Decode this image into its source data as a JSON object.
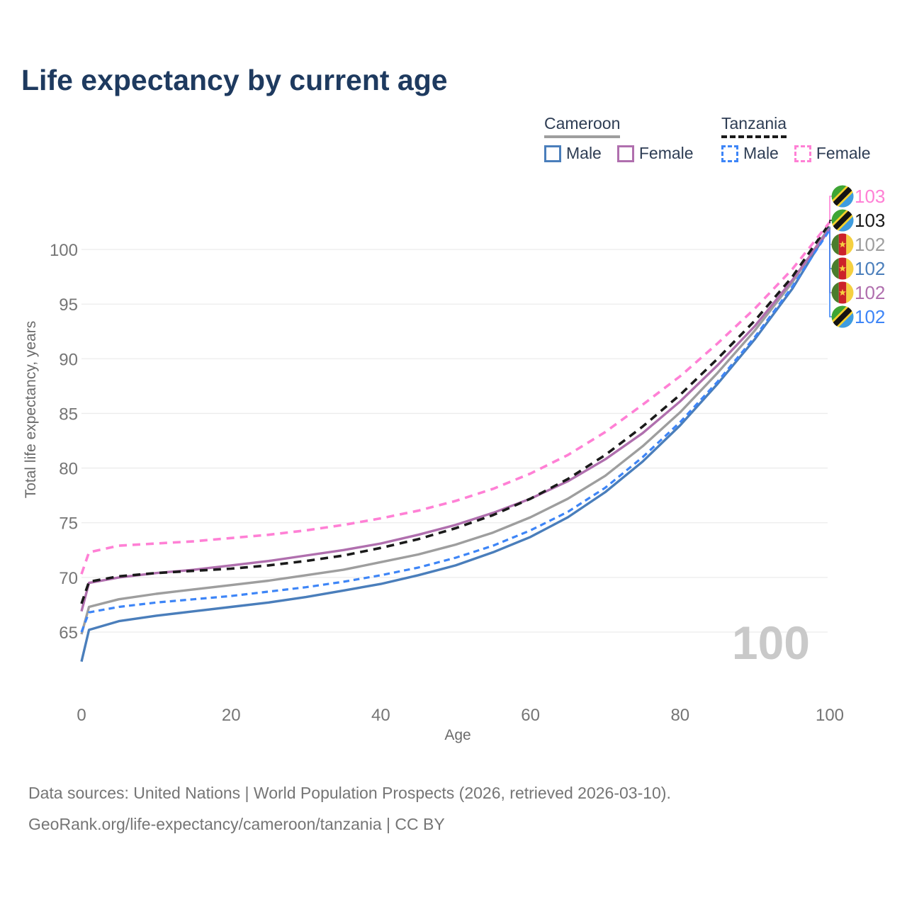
{
  "title": "Life expectancy by current age",
  "legend": {
    "cameroon": {
      "label": "Cameroon",
      "male": "Male",
      "female": "Female"
    },
    "tanzania": {
      "label": "Tanzania",
      "male": "Male",
      "female": "Female"
    }
  },
  "y_axis": {
    "title": "Total life expectancy, years",
    "ticks": [
      65,
      70,
      75,
      80,
      85,
      90,
      95,
      100
    ]
  },
  "x_axis": {
    "title": "Age",
    "ticks": [
      0,
      20,
      40,
      60,
      80,
      100
    ]
  },
  "watermark": "100",
  "footer": {
    "line1": "Data sources: United Nations | World Population Prospects (2026, retrieved 2026-03-10).",
    "line2": "GeoRank.org/life-expectancy/cameroon/tanzania | CC BY"
  },
  "colors": {
    "title": "#1e3a5f",
    "legend_text": "#2e3d54",
    "tick": "#757575",
    "axis_label": "#6b6b6b",
    "grid": "#ececec",
    "watermark": "#c9c9c9",
    "cameroon_male": "#4a7ebb",
    "cameroon_female": "#b06fae",
    "cameroon_both": "#9e9e9e",
    "tanzania_male": "#3d85f7",
    "tanzania_female": "#ff80d5",
    "tanzania_both": "#1a1a1a"
  },
  "flag_colors": {
    "tanzania": {
      "green": "#3FA535",
      "blue": "#3E9CE0",
      "yellow": "#F8D12B",
      "black": "#141414"
    },
    "cameroon": {
      "green": "#4a7d2c",
      "red": "#cc2229",
      "yellow": "#f5d040"
    }
  },
  "chart_data": {
    "type": "line",
    "title": "Life expectancy by current age",
    "xlabel": "Age",
    "ylabel": "Total life expectancy, years",
    "x_ticks": [
      0,
      20,
      40,
      60,
      80,
      100
    ],
    "y_ticks": [
      65,
      70,
      75,
      80,
      85,
      90,
      95,
      100
    ],
    "xlim": [
      0,
      100
    ],
    "ylim": [
      62,
      103
    ],
    "grid": "horizontal",
    "legend_position": "top-right",
    "ages": [
      0,
      1,
      5,
      10,
      15,
      20,
      25,
      30,
      35,
      40,
      45,
      50,
      55,
      60,
      65,
      70,
      75,
      80,
      85,
      90,
      95,
      100
    ],
    "series": [
      {
        "id": "tanzania-female",
        "name": "Tanzania Female",
        "country": "tanzania",
        "sex": "female",
        "line": "dashed",
        "color": "#ff80d5",
        "dash": "11 8",
        "width": 3.6,
        "row": 1,
        "end_label": "103",
        "values": [
          70.3,
          72.3,
          72.9,
          73.1,
          73.3,
          73.6,
          73.9,
          74.3,
          74.8,
          75.4,
          76.1,
          77.0,
          78.1,
          79.5,
          81.2,
          83.3,
          85.8,
          88.4,
          91.4,
          94.6,
          98.2,
          102.5
        ]
      },
      {
        "id": "tanzania-both",
        "name": "Tanzania Both sexes",
        "country": "tanzania",
        "sex": "both",
        "line": "dashed",
        "color": "#1a1a1a",
        "dash": "11 8",
        "width": 3.6,
        "row": 2,
        "end_label": "103",
        "values": [
          67.6,
          69.6,
          70.1,
          70.4,
          70.6,
          70.8,
          71.1,
          71.5,
          72.0,
          72.7,
          73.5,
          74.5,
          75.7,
          77.2,
          79.0,
          81.2,
          83.8,
          86.7,
          90.0,
          93.5,
          97.5,
          102.4
        ]
      },
      {
        "id": "cameroon-both",
        "name": "Cameroon Both sexes",
        "country": "cameroon",
        "sex": "both",
        "line": "solid",
        "color": "#9e9e9e",
        "dash": null,
        "width": 3.4,
        "row": 3,
        "end_label": "102",
        "values": [
          64.8,
          67.3,
          68.0,
          68.5,
          68.9,
          69.3,
          69.7,
          70.2,
          70.7,
          71.4,
          72.1,
          73.0,
          74.1,
          75.5,
          77.2,
          79.3,
          82.0,
          85.1,
          88.7,
          92.6,
          97.0,
          102.1
        ]
      },
      {
        "id": "cameroon-male",
        "name": "Cameroon Male",
        "country": "cameroon",
        "sex": "male",
        "line": "solid",
        "color": "#4a7ebb",
        "dash": null,
        "width": 3.4,
        "row": 4,
        "end_label": "102",
        "values": [
          62.3,
          65.2,
          66.0,
          66.5,
          66.9,
          67.3,
          67.7,
          68.2,
          68.8,
          69.4,
          70.2,
          71.1,
          72.3,
          73.7,
          75.5,
          77.8,
          80.6,
          83.9,
          87.7,
          91.8,
          96.4,
          102.0
        ]
      },
      {
        "id": "cameroon-female",
        "name": "Cameroon Female",
        "country": "cameroon",
        "sex": "female",
        "line": "solid",
        "color": "#b06fae",
        "dash": null,
        "width": 3.4,
        "row": 5,
        "end_label": "102",
        "values": [
          66.9,
          69.5,
          70.0,
          70.4,
          70.7,
          71.1,
          71.5,
          72.0,
          72.5,
          73.1,
          73.9,
          74.8,
          75.9,
          77.2,
          78.8,
          80.8,
          83.2,
          86.1,
          89.4,
          93.0,
          97.2,
          101.9
        ]
      },
      {
        "id": "tanzania-male",
        "name": "Tanzania Male",
        "country": "tanzania",
        "sex": "male",
        "line": "dashed",
        "color": "#3d85f7",
        "dash": "8.5 6",
        "width": 3.2,
        "row": 6,
        "end_label": "102",
        "values": [
          65.0,
          66.8,
          67.3,
          67.7,
          68.0,
          68.3,
          68.7,
          69.1,
          69.6,
          70.2,
          70.9,
          71.8,
          72.9,
          74.3,
          76.0,
          78.2,
          81.0,
          84.2,
          87.9,
          92.0,
          96.6,
          101.8
        ]
      }
    ]
  }
}
